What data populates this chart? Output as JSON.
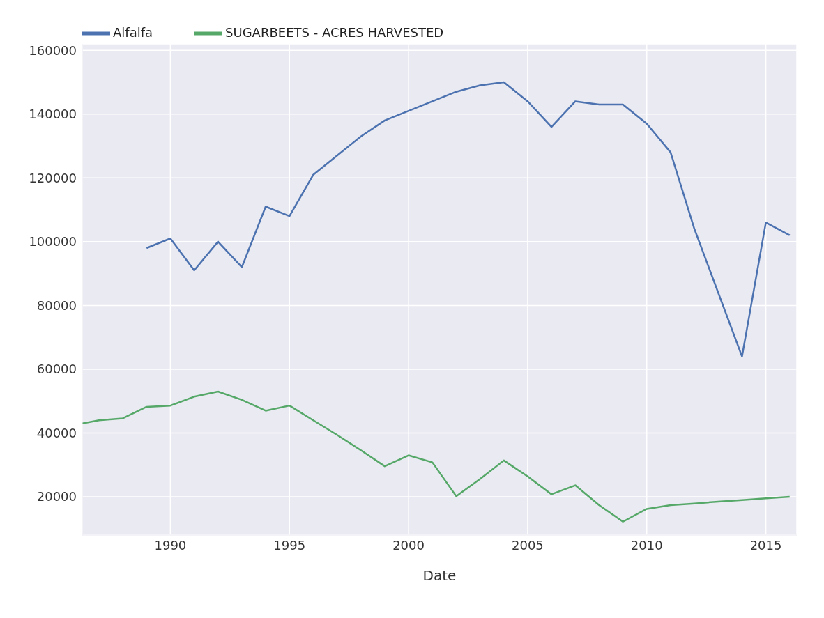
{
  "chart_data": {
    "type": "line",
    "xlabel": "Date",
    "legend": "top left",
    "grid": true,
    "marker": "none",
    "line_style": "solid",
    "xlim": [
      1986.3,
      2016.3
    ],
    "xticks": [
      1990,
      1995,
      2000,
      2005,
      2010,
      2015
    ],
    "ylim": [
      8000,
      162000
    ],
    "yticks": [
      20000,
      40000,
      60000,
      80000,
      100000,
      120000,
      140000,
      160000
    ],
    "series": [
      {
        "name": "Alfalfa",
        "color": "#4c72b0",
        "x": [
          1989,
          1990,
          1991,
          1992,
          1993,
          1994,
          1995,
          1996,
          1997,
          1998,
          1999,
          2000,
          2001,
          2002,
          2003,
          2004,
          2005,
          2006,
          2007,
          2008,
          2009,
          2010,
          2011,
          2012,
          2014,
          2015,
          2016
        ],
        "values": [
          98000,
          101000,
          91000,
          100000,
          92000,
          111000,
          108000,
          121000,
          127000,
          133000,
          138000,
          141000,
          144000,
          147000,
          149000,
          150000,
          144000,
          136000,
          144000,
          143000,
          143000,
          137000,
          128000,
          104000,
          64000,
          106000,
          102000
        ]
      },
      {
        "name": "SUGARBEETS - ACRES HARVESTED",
        "color": "#55a868",
        "x": [
          1986.3,
          1987,
          1988,
          1989,
          1990,
          1991,
          1992,
          1993,
          1994,
          1995,
          1996,
          1997,
          1998,
          1999,
          2000,
          2001,
          2002,
          2003,
          2004,
          2005,
          2006,
          2007,
          2008,
          2009,
          2010,
          2011,
          2012,
          2013,
          2014,
          2015,
          2016
        ],
        "values": [
          43000,
          44000,
          44600,
          48200,
          48600,
          51400,
          53000,
          50400,
          47000,
          48600,
          44000,
          39400,
          34600,
          29600,
          33000,
          30800,
          20200,
          25600,
          31400,
          26400,
          20800,
          23600,
          17400,
          12200,
          16200,
          17400,
          17900,
          18500,
          19000,
          19500,
          20000
        ]
      }
    ]
  }
}
